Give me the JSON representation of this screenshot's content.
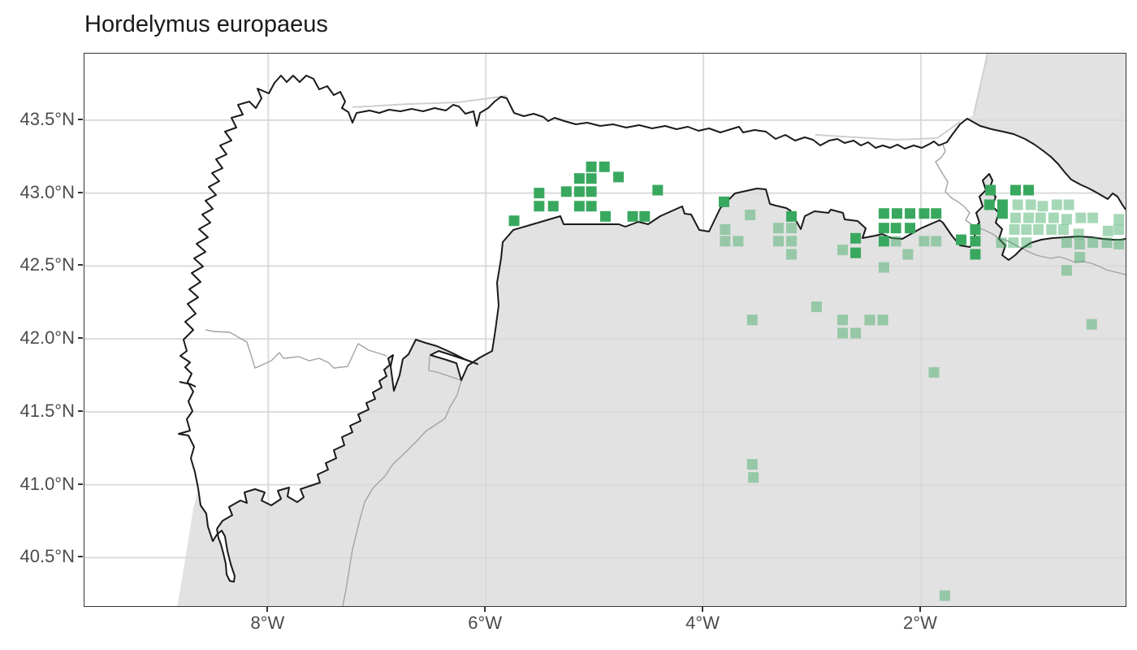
{
  "title": "Hordelymus europaeus",
  "colors": {
    "occurrence_dark": "#39a85f",
    "occurrence_light_opacity": 0.45,
    "land_gray": "#e2e2e2",
    "grid": "#e4e4e4",
    "grid_overlay": "rgba(0,0,0,0.03)",
    "coast_black": "#1a1a1a",
    "admin_gray": "#a3a3a3",
    "pale_coast": "#cfcfcf",
    "axis_text": "#4b4b4b",
    "tick_mark": "#333333",
    "panel_border": "#353535"
  },
  "axes": {
    "x_ticks": [
      {
        "label": "8°W",
        "lon": -8
      },
      {
        "label": "6°W",
        "lon": -6
      },
      {
        "label": "4°W",
        "lon": -4
      },
      {
        "label": "2°W",
        "lon": -2
      }
    ],
    "y_ticks": [
      {
        "label": "43.5°N",
        "lat": 43.5
      },
      {
        "label": "43.0°N",
        "lat": 43.0
      },
      {
        "label": "42.5°N",
        "lat": 42.5
      },
      {
        "label": "42.0°N",
        "lat": 42.0
      },
      {
        "label": "41.5°N",
        "lat": 41.5
      },
      {
        "label": "41.0°N",
        "lat": 41.0
      },
      {
        "label": "40.5°N",
        "lat": 40.5
      }
    ],
    "domain": {
      "lon_min": -9.69,
      "lon_max": -0.118,
      "lat_min": 40.168,
      "lat_max": 43.956
    }
  },
  "chart_data": {
    "type": "scatter",
    "title": "Hordelymus europaeus",
    "marker": "square",
    "marker_size_px": 13,
    "series_note": "v=1 solid green occurrence, v=0 translucent green occurrence",
    "points": [
      [
        -5.03,
        43.18,
        1
      ],
      [
        -4.91,
        43.18,
        1
      ],
      [
        -5.14,
        43.1,
        1
      ],
      [
        -5.03,
        43.1,
        1
      ],
      [
        -4.78,
        43.11,
        1
      ],
      [
        -5.51,
        43.0,
        1
      ],
      [
        -5.26,
        43.01,
        1
      ],
      [
        -5.14,
        43.01,
        1
      ],
      [
        -5.03,
        43.01,
        1
      ],
      [
        -4.42,
        43.02,
        1
      ],
      [
        -5.51,
        42.91,
        1
      ],
      [
        -5.38,
        42.91,
        1
      ],
      [
        -5.14,
        42.91,
        1
      ],
      [
        -5.03,
        42.91,
        1
      ],
      [
        -5.74,
        42.81,
        1
      ],
      [
        -4.9,
        42.84,
        1
      ],
      [
        -4.65,
        42.84,
        1
      ],
      [
        -4.54,
        42.84,
        1
      ],
      [
        -3.81,
        42.94,
        1
      ],
      [
        -3.57,
        42.85,
        0
      ],
      [
        -3.19,
        42.84,
        1
      ],
      [
        -3.8,
        42.75,
        0
      ],
      [
        -3.31,
        42.76,
        0
      ],
      [
        -3.19,
        42.76,
        0
      ],
      [
        -3.8,
        42.67,
        0
      ],
      [
        -3.68,
        42.67,
        0
      ],
      [
        -3.31,
        42.67,
        0
      ],
      [
        -3.19,
        42.67,
        0
      ],
      [
        -3.19,
        42.58,
        0
      ],
      [
        -2.72,
        42.61,
        0
      ],
      [
        -2.6,
        42.69,
        1
      ],
      [
        -2.6,
        42.59,
        1
      ],
      [
        -2.34,
        42.86,
        1
      ],
      [
        -2.22,
        42.86,
        1
      ],
      [
        -2.1,
        42.86,
        1
      ],
      [
        -1.97,
        42.86,
        1
      ],
      [
        -1.86,
        42.86,
        1
      ],
      [
        -2.34,
        42.76,
        1
      ],
      [
        -2.23,
        42.76,
        1
      ],
      [
        -2.1,
        42.76,
        1
      ],
      [
        -2.34,
        42.67,
        1
      ],
      [
        -2.23,
        42.67,
        0
      ],
      [
        -1.97,
        42.67,
        0
      ],
      [
        -1.86,
        42.67,
        0
      ],
      [
        -2.12,
        42.58,
        0
      ],
      [
        -2.34,
        42.49,
        0
      ],
      [
        -1.63,
        42.68,
        1
      ],
      [
        -1.5,
        42.75,
        1
      ],
      [
        -1.5,
        42.67,
        1
      ],
      [
        -1.5,
        42.58,
        1
      ],
      [
        -1.36,
        43.02,
        1
      ],
      [
        -1.13,
        43.02,
        1
      ],
      [
        -1.01,
        43.02,
        1
      ],
      [
        -1.37,
        42.92,
        1
      ],
      [
        -1.25,
        42.92,
        1
      ],
      [
        -1.25,
        42.86,
        1
      ],
      [
        -1.11,
        42.92,
        0
      ],
      [
        -0.99,
        42.92,
        0
      ],
      [
        -0.88,
        42.91,
        0
      ],
      [
        -0.75,
        42.92,
        0
      ],
      [
        -0.64,
        42.92,
        0
      ],
      [
        -1.13,
        42.83,
        0
      ],
      [
        -1.01,
        42.83,
        0
      ],
      [
        -0.9,
        42.83,
        0
      ],
      [
        -0.78,
        42.83,
        0
      ],
      [
        -0.66,
        42.82,
        0
      ],
      [
        -0.53,
        42.83,
        0
      ],
      [
        -0.42,
        42.83,
        0
      ],
      [
        -0.18,
        42.82,
        0
      ],
      [
        -1.14,
        42.75,
        0
      ],
      [
        -1.03,
        42.75,
        0
      ],
      [
        -0.92,
        42.75,
        0
      ],
      [
        -0.8,
        42.75,
        0
      ],
      [
        -0.69,
        42.75,
        0
      ],
      [
        -0.55,
        42.72,
        0
      ],
      [
        -0.28,
        42.74,
        0
      ],
      [
        -0.18,
        42.75,
        0
      ],
      [
        -1.26,
        42.66,
        0
      ],
      [
        -1.15,
        42.66,
        0
      ],
      [
        -1.03,
        42.66,
        0
      ],
      [
        -0.66,
        42.66,
        0
      ],
      [
        -0.54,
        42.65,
        0
      ],
      [
        -0.42,
        42.66,
        0
      ],
      [
        -0.29,
        42.66,
        0
      ],
      [
        -0.18,
        42.65,
        0
      ],
      [
        -0.54,
        42.56,
        0
      ],
      [
        -0.66,
        42.47,
        0
      ],
      [
        -2.96,
        42.22,
        0
      ],
      [
        -3.55,
        42.13,
        0
      ],
      [
        -2.72,
        42.13,
        0
      ],
      [
        -2.47,
        42.13,
        0
      ],
      [
        -2.35,
        42.13,
        0
      ],
      [
        -2.72,
        42.04,
        0
      ],
      [
        -2.6,
        42.04,
        0
      ],
      [
        -1.88,
        41.77,
        0
      ],
      [
        -3.55,
        41.14,
        0
      ],
      [
        -3.54,
        41.05,
        0
      ],
      [
        -1.78,
        40.24,
        0
      ],
      [
        -0.43,
        42.1,
        0
      ]
    ]
  }
}
